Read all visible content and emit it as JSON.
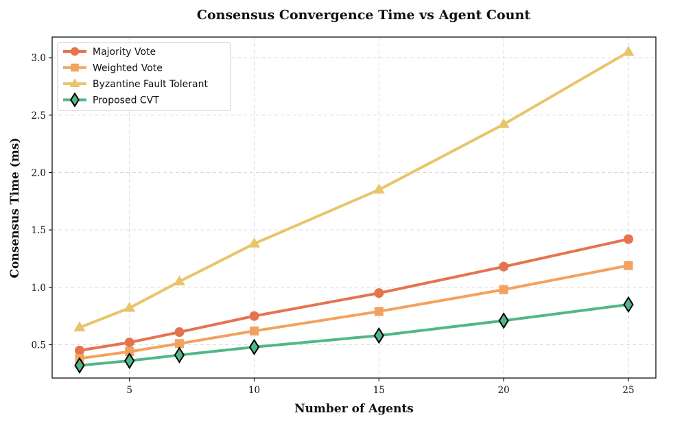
{
  "chart_data": {
    "type": "line",
    "title": "Consensus Convergence Time vs Agent Count",
    "xlabel": "Number of Agents",
    "ylabel": "Consensus Time (ms)",
    "x": [
      3,
      5,
      7,
      10,
      15,
      20,
      25
    ],
    "xlim": [
      1.9,
      26.1
    ],
    "ylim": [
      0.21,
      3.18
    ],
    "xticks": [
      5,
      10,
      15,
      20,
      25
    ],
    "yticks": [
      0.5,
      1.0,
      1.5,
      2.0,
      2.5,
      3.0
    ],
    "xtick_labels": [
      "5",
      "10",
      "15",
      "20",
      "25"
    ],
    "ytick_labels": [
      "0.5",
      "1.0",
      "1.5",
      "2.0",
      "2.5",
      "3.0"
    ],
    "grid": true,
    "legend_position": "top-left",
    "series": [
      {
        "name": "Majority Vote",
        "color": "#E5734F",
        "marker": "circle",
        "values": [
          0.45,
          0.52,
          0.61,
          0.75,
          0.95,
          1.18,
          1.42
        ]
      },
      {
        "name": "Weighted Vote",
        "color": "#F2A25E",
        "marker": "square",
        "values": [
          0.38,
          0.44,
          0.51,
          0.62,
          0.79,
          0.98,
          1.19
        ]
      },
      {
        "name": "Byzantine Fault Tolerant",
        "color": "#E8C56A",
        "marker": "triangle",
        "values": [
          0.65,
          0.82,
          1.05,
          1.38,
          1.85,
          2.42,
          3.05
        ]
      },
      {
        "name": "Proposed CVT",
        "color": "#52B788",
        "marker": "diamond",
        "values": [
          0.32,
          0.36,
          0.41,
          0.48,
          0.58,
          0.71,
          0.85
        ]
      }
    ]
  }
}
